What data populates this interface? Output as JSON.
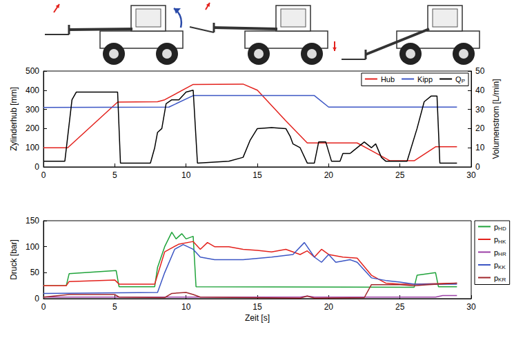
{
  "chart_data": [
    {
      "type": "line",
      "ylabel": "Zylinderhub [mm]",
      "y2label": "Volumenstrom [L/min]",
      "xlim": [
        0,
        30
      ],
      "xticks": [
        0,
        5,
        10,
        15,
        20,
        25,
        30
      ],
      "ylim": [
        0,
        500
      ],
      "yticks": [
        0,
        100,
        200,
        300,
        400,
        500
      ],
      "y2lim": [
        0,
        50
      ],
      "y2ticks": [
        0,
        10,
        20,
        30,
        40,
        50
      ],
      "grid": false,
      "legend": "upper right",
      "series": [
        {
          "name": "Hub",
          "color": "#e3211c",
          "x": [
            0,
            1.7,
            5.2,
            8,
            8.5,
            10.5,
            14,
            15,
            17,
            18.5,
            22,
            23,
            24.3,
            26,
            27.5,
            29
          ],
          "values": [
            100,
            100,
            338,
            340,
            350,
            430,
            432,
            400,
            240,
            125,
            125,
            85,
            32,
            32,
            105,
            105
          ]
        },
        {
          "name": "Kipp",
          "color": "#3b55c4",
          "x": [
            0,
            8.8,
            10.5,
            19,
            20,
            29
          ],
          "values": [
            310,
            312,
            372,
            372,
            312,
            312
          ]
        },
        {
          "name": "QP",
          "color": "#000000",
          "axis": "y2",
          "x": [
            0,
            1.5,
            2,
            2.3,
            5.2,
            5.4,
            7.5,
            7.8,
            8,
            8.3,
            8.6,
            9,
            9.5,
            10,
            10.5,
            10.8,
            13,
            14,
            14.5,
            15,
            16,
            17,
            17.3,
            17.5,
            18,
            18.5,
            19,
            19.3,
            19.8,
            20.2,
            20.8,
            21,
            21.5,
            22,
            22.5,
            23,
            23.3,
            23.7,
            24,
            25.5,
            26.2,
            26.7,
            27.2,
            27.6,
            27.8,
            29
          ],
          "values": [
            3,
            3,
            35,
            39,
            39,
            2,
            2,
            10,
            18,
            20,
            33,
            35,
            35,
            39,
            40,
            2,
            3,
            5,
            14,
            20,
            20.5,
            20,
            16,
            12,
            10,
            2,
            2,
            13,
            13,
            3,
            3,
            7,
            7,
            10,
            13,
            10,
            12,
            5,
            3,
            3,
            20,
            34,
            37,
            37,
            2,
            2
          ]
        }
      ]
    },
    {
      "type": "line",
      "xlabel": "Zeit [s]",
      "ylabel": "Druck [bar]",
      "xlim": [
        0,
        30
      ],
      "xticks": [
        0,
        5,
        10,
        15,
        20,
        25,
        30
      ],
      "ylim": [
        0,
        150
      ],
      "yticks": [
        0,
        50,
        100,
        150
      ],
      "grid": false,
      "legend": "right",
      "series": [
        {
          "name": "pHD",
          "color": "#1fa33a",
          "x": [
            0,
            1.6,
            1.8,
            5.1,
            5.3,
            7.8,
            8,
            8.5,
            9,
            9.3,
            9.7,
            10,
            10.5,
            10.7,
            26,
            26.2,
            27.5,
            27.7,
            29
          ],
          "values": [
            25,
            25,
            48,
            54,
            23,
            23,
            60,
            100,
            128,
            115,
            125,
            115,
            120,
            23,
            22,
            45,
            50,
            23,
            23
          ]
        },
        {
          "name": "pHK",
          "color": "#e3211c",
          "x": [
            0,
            1.6,
            1.8,
            5,
            5.3,
            7.8,
            8.5,
            9.5,
            10.5,
            11,
            11.5,
            12,
            13,
            14,
            15,
            16,
            17,
            18,
            18.5,
            19,
            19.5,
            20,
            21,
            22,
            23,
            24,
            25,
            26,
            29
          ],
          "values": [
            25,
            25,
            33,
            36,
            28,
            28,
            90,
            105,
            110,
            95,
            108,
            100,
            100,
            95,
            93,
            90,
            95,
            85,
            92,
            80,
            95,
            85,
            80,
            78,
            45,
            30,
            28,
            28,
            30
          ]
        },
        {
          "name": "pHR",
          "color": "#9b3fa6",
          "x": [
            0,
            18,
            18.5,
            19,
            27.5,
            28,
            29
          ],
          "values": [
            3,
            3,
            5,
            3,
            3,
            6,
            6
          ]
        },
        {
          "name": "pKK",
          "color": "#3b55c4",
          "x": [
            0,
            8,
            8.5,
            9.2,
            9.8,
            10.5,
            11,
            12,
            14,
            16,
            17.5,
            18.3,
            19,
            19.5,
            20,
            20.5,
            21.5,
            22,
            23,
            24,
            25,
            26,
            29
          ],
          "values": [
            10,
            12,
            50,
            95,
            104,
            95,
            80,
            75,
            75,
            80,
            85,
            108,
            80,
            70,
            85,
            70,
            75,
            70,
            40,
            35,
            32,
            28,
            28
          ]
        },
        {
          "name": "pKR",
          "color": "#a0262b",
          "x": [
            0,
            1.8,
            5,
            5.3,
            8.5,
            9,
            10,
            10.5,
            11,
            18,
            18.5,
            19,
            22.5,
            23,
            24,
            25,
            26,
            27,
            29
          ],
          "values": [
            3,
            8,
            8,
            3,
            2,
            10,
            12,
            8,
            3,
            1,
            5,
            1,
            2,
            27,
            27,
            27,
            25,
            27,
            30
          ]
        }
      ]
    }
  ]
}
